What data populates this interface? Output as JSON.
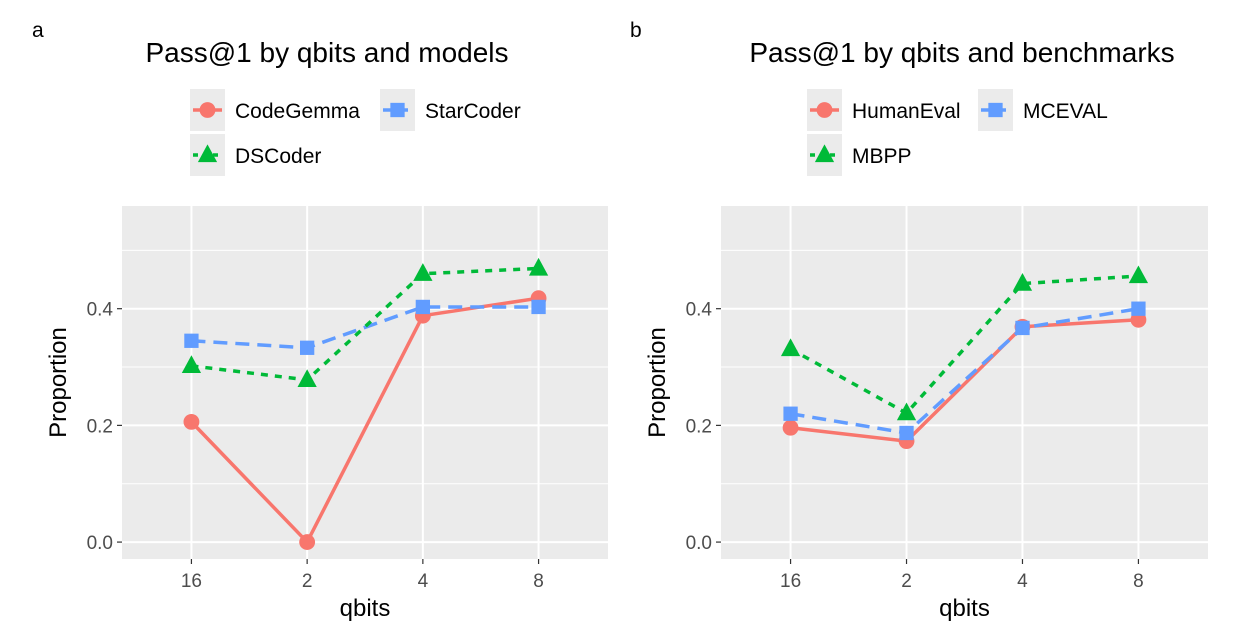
{
  "chart_data": [
    {
      "panel_label": "a",
      "type": "line",
      "title": "Pass@1 by qbits and models",
      "xlabel": "qbits",
      "ylabel": "Proportion",
      "categories": [
        "16",
        "2",
        "4",
        "8"
      ],
      "yticks": [
        "0.0",
        "0.2",
        "0.4"
      ],
      "ytick_values": [
        0.0,
        0.2,
        0.4
      ],
      "ylim": [
        -0.029,
        0.576
      ],
      "grid": true,
      "legend_position": "top",
      "series": [
        {
          "name": "CodeGemma",
          "color": "#F8766D",
          "line": "solid",
          "marker": "circle",
          "values": [
            0.206,
            0.0,
            0.388,
            0.418
          ]
        },
        {
          "name": "StarCoder",
          "color": "#619CFF",
          "line": "dashed",
          "marker": "square",
          "values": [
            0.345,
            0.333,
            0.403,
            0.403
          ]
        },
        {
          "name": "DSCoder",
          "color": "#00BA38",
          "line": "dotted",
          "marker": "triangle",
          "values": [
            0.302,
            0.278,
            0.46,
            0.469
          ]
        }
      ]
    },
    {
      "panel_label": "b",
      "type": "line",
      "title": "Pass@1 by qbits and benchmarks",
      "xlabel": "qbits",
      "ylabel": "Proportion",
      "categories": [
        "16",
        "2",
        "4",
        "8"
      ],
      "yticks": [
        "0.0",
        "0.2",
        "0.4"
      ],
      "ytick_values": [
        0.0,
        0.2,
        0.4
      ],
      "ylim": [
        -0.029,
        0.576
      ],
      "grid": true,
      "legend_position": "top",
      "series": [
        {
          "name": "HumanEval",
          "color": "#F8766D",
          "line": "solid",
          "marker": "circle",
          "values": [
            0.196,
            0.173,
            0.369,
            0.381
          ]
        },
        {
          "name": "MCEVAL",
          "color": "#619CFF",
          "line": "dashed",
          "marker": "square",
          "values": [
            0.22,
            0.187,
            0.367,
            0.4
          ]
        },
        {
          "name": "MBPP",
          "color": "#00BA38",
          "line": "dotted",
          "marker": "triangle",
          "values": [
            0.331,
            0.221,
            0.443,
            0.456
          ]
        }
      ]
    }
  ]
}
